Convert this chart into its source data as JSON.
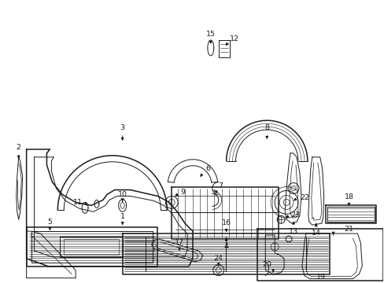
{
  "background_color": "#ffffff",
  "line_color": "#1a1a1a",
  "fig_width": 4.89,
  "fig_height": 3.6,
  "dpi": 100
}
